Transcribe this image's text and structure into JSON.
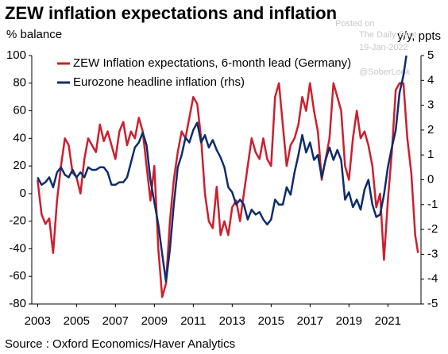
{
  "chart_data": {
    "type": "line",
    "title": "ZEW inflation expectations and inflation",
    "y_label": "% balance",
    "y2_label": "y/y, ppts",
    "source": "Source : Oxford Economics/Haver Analytics",
    "annotations": [
      "Posted on",
      "The Daily Shot",
      "19-Jan-2022",
      "@SoberLook"
    ],
    "xlim": [
      2002.7,
      2022.7
    ],
    "xticks": [
      2003,
      2005,
      2007,
      2009,
      2011,
      2013,
      2015,
      2017,
      2019,
      2021
    ],
    "ylim": [
      -80,
      100
    ],
    "yticks": [
      -80,
      -60,
      -40,
      -20,
      0,
      20,
      40,
      60,
      80,
      100
    ],
    "y2lim": [
      -5,
      5
    ],
    "y2ticks": [
      -5,
      -4,
      -3,
      -2,
      -1,
      0,
      1,
      2,
      3,
      4,
      5
    ],
    "grid": false,
    "legend": "top-left",
    "series": [
      {
        "name": "ZEW Inflation expectations, 6-month lead (Germany)",
        "color": "#cc1f2e",
        "x": [
          2003.0,
          2003.2,
          2003.4,
          2003.6,
          2003.8,
          2004.0,
          2004.2,
          2004.4,
          2004.6,
          2004.8,
          2005.0,
          2005.2,
          2005.4,
          2005.6,
          2005.8,
          2006.0,
          2006.2,
          2006.4,
          2006.6,
          2006.8,
          2007.0,
          2007.2,
          2007.4,
          2007.6,
          2007.8,
          2008.0,
          2008.2,
          2008.4,
          2008.6,
          2008.8,
          2009.0,
          2009.2,
          2009.4,
          2009.6,
          2009.8,
          2010.0,
          2010.2,
          2010.4,
          2010.6,
          2010.8,
          2011.0,
          2011.2,
          2011.4,
          2011.6,
          2011.8,
          2012.0,
          2012.2,
          2012.4,
          2012.6,
          2012.8,
          2013.0,
          2013.2,
          2013.4,
          2013.6,
          2013.8,
          2014.0,
          2014.2,
          2014.4,
          2014.6,
          2014.8,
          2015.0,
          2015.2,
          2015.4,
          2015.6,
          2015.8,
          2016.0,
          2016.2,
          2016.4,
          2016.6,
          2016.8,
          2017.0,
          2017.2,
          2017.4,
          2017.6,
          2017.8,
          2018.0,
          2018.2,
          2018.4,
          2018.6,
          2018.8,
          2019.0,
          2019.2,
          2019.4,
          2019.6,
          2019.8,
          2020.0,
          2020.2,
          2020.4,
          2020.6,
          2020.8,
          2021.0,
          2021.2,
          2021.4,
          2021.6,
          2021.8,
          2022.0,
          2022.2,
          2022.4,
          2022.55
        ],
        "values": [
          10,
          -15,
          -22,
          -18,
          -43,
          -5,
          20,
          40,
          35,
          15,
          12,
          0,
          25,
          40,
          35,
          30,
          50,
          38,
          45,
          35,
          25,
          45,
          52,
          35,
          45,
          40,
          55,
          45,
          20,
          -5,
          20,
          -40,
          -75,
          -65,
          -20,
          10,
          30,
          45,
          40,
          55,
          70,
          65,
          40,
          0,
          -20,
          -25,
          5,
          -30,
          -20,
          -30,
          -10,
          -5,
          -20,
          0,
          20,
          40,
          30,
          25,
          40,
          25,
          20,
          70,
          80,
          50,
          20,
          35,
          40,
          50,
          70,
          60,
          80,
          60,
          45,
          10,
          25,
          40,
          80,
          70,
          60,
          20,
          10,
          40,
          60,
          40,
          45,
          35,
          20,
          -10,
          0,
          -48,
          -5,
          30,
          75,
          80,
          80,
          40,
          15,
          -30,
          -43
        ]
      },
      {
        "name": "Eurozone headline inflation (rhs)",
        "color": "#0d2d6c",
        "axis": "y2",
        "x": [
          2003.0,
          2003.2,
          2003.4,
          2003.6,
          2003.8,
          2004.0,
          2004.2,
          2004.4,
          2004.6,
          2004.8,
          2005.0,
          2005.2,
          2005.4,
          2005.6,
          2005.8,
          2006.0,
          2006.2,
          2006.4,
          2006.6,
          2006.8,
          2007.0,
          2007.2,
          2007.4,
          2007.6,
          2007.8,
          2008.0,
          2008.2,
          2008.4,
          2008.6,
          2008.8,
          2009.0,
          2009.2,
          2009.4,
          2009.6,
          2009.8,
          2010.0,
          2010.2,
          2010.4,
          2010.6,
          2010.8,
          2011.0,
          2011.2,
          2011.4,
          2011.6,
          2011.8,
          2012.0,
          2012.2,
          2012.4,
          2012.6,
          2012.8,
          2013.0,
          2013.2,
          2013.4,
          2013.6,
          2013.8,
          2014.0,
          2014.2,
          2014.4,
          2014.6,
          2014.8,
          2015.0,
          2015.2,
          2015.4,
          2015.6,
          2015.8,
          2016.0,
          2016.2,
          2016.4,
          2016.6,
          2016.8,
          2017.0,
          2017.2,
          2017.4,
          2017.6,
          2017.8,
          2018.0,
          2018.2,
          2018.4,
          2018.6,
          2018.8,
          2019.0,
          2019.2,
          2019.4,
          2019.6,
          2019.8,
          2020.0,
          2020.2,
          2020.4,
          2020.6,
          2020.8,
          2021.0,
          2021.2,
          2021.4,
          2021.6,
          2021.8,
          2021.95
        ],
        "values": [
          0.1,
          -0.2,
          -0.1,
          0.1,
          -0.3,
          0.3,
          0.5,
          0.2,
          0.1,
          0.4,
          0.1,
          0.3,
          0.1,
          0.5,
          0.4,
          0.4,
          0.5,
          0.5,
          0.3,
          -0.2,
          -0.2,
          -0.1,
          -0.1,
          0.1,
          0.7,
          1.3,
          1.5,
          1.9,
          1.4,
          0.0,
          -0.9,
          -1.8,
          -3.0,
          -4.1,
          -2.8,
          -1.0,
          0.5,
          1.0,
          1.7,
          1.5,
          2.0,
          2.3,
          1.5,
          1.8,
          1.3,
          1.6,
          1.2,
          0.9,
          0.5,
          -0.3,
          -0.5,
          -1.0,
          -0.8,
          -1.0,
          -1.6,
          -1.2,
          -1.4,
          -1.3,
          -1.6,
          -1.8,
          -1.6,
          -0.8,
          -1.0,
          -1.0,
          -0.3,
          -0.6,
          0.3,
          1.0,
          1.8,
          1.1,
          1.5,
          0.8,
          1.0,
          0.1,
          0.8,
          1.3,
          0.8,
          1.2,
          0.8,
          -0.8,
          -0.5,
          -1.1,
          -0.8,
          -1.2,
          -0.4,
          0.0,
          -1.0,
          -1.5,
          -1.4,
          -0.6,
          0.5,
          1.3,
          2.0,
          3.5,
          4.2,
          5.0
        ]
      }
    ]
  }
}
